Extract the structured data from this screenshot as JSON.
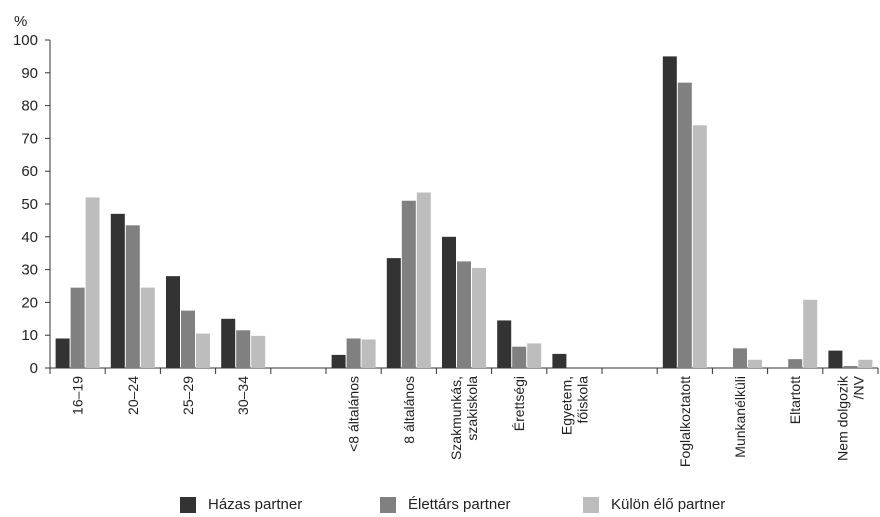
{
  "chart_data": {
    "type": "bar",
    "ylabel": "%",
    "ylim": [
      0,
      100
    ],
    "yticks": [
      0,
      10,
      20,
      30,
      40,
      50,
      60,
      70,
      80,
      90,
      100
    ],
    "categories": [
      "16–19",
      "20–24",
      "25–29",
      "30–34",
      "",
      "<8 általános",
      "8 általános",
      "Szakmunkás, szakiskola",
      "Érettségi",
      "Egyetem, főiskola",
      "",
      "Foglalkoztatott",
      "Munkanélküli",
      "Eltartott",
      "Nem dolgozik /NV"
    ],
    "tick_lines": [
      [
        "16–19"
      ],
      [
        "20–24"
      ],
      [
        "25–29"
      ],
      [
        "30–34"
      ],
      [],
      [
        "<8 általános"
      ],
      [
        "8 általános"
      ],
      [
        "Szakmunkás,",
        "szakiskola"
      ],
      [
        "Érettségi"
      ],
      [
        "Egyetem,",
        "főiskola"
      ],
      [],
      [
        "Foglalkoztatott"
      ],
      [
        "Munkanélküli"
      ],
      [
        "Eltartott"
      ],
      [
        "Nem dolgozik",
        "/NV"
      ]
    ],
    "series": [
      {
        "name": "Házas partner",
        "color": "#333333",
        "values": [
          9,
          47,
          28,
          15,
          null,
          4,
          33.5,
          40,
          14.5,
          4.3,
          null,
          95,
          0,
          0,
          5.3
        ]
      },
      {
        "name": "Élettárs partner",
        "color": "#808080",
        "values": [
          24.5,
          43.5,
          17.5,
          11.5,
          null,
          9,
          51,
          32.5,
          6.5,
          0,
          null,
          87,
          6,
          2.7,
          0.6
        ]
      },
      {
        "name": "Külön élő partner",
        "color": "#bdbdbd",
        "values": [
          52,
          24.5,
          10.5,
          9.8,
          null,
          8.7,
          53.5,
          30.5,
          7.5,
          0,
          null,
          74,
          2.5,
          20.8,
          2.5
        ]
      }
    ],
    "legend_position": "bottom",
    "grid": false
  }
}
